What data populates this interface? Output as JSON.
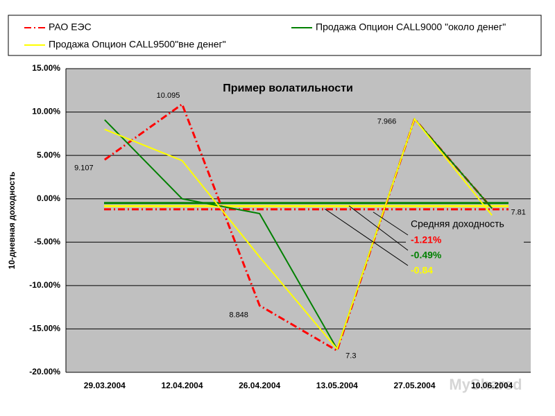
{
  "chart_data": {
    "type": "line",
    "title": "Пример волатильности",
    "y_label": "10-дневная доходность",
    "categories": [
      "29.03.2004",
      "12.04.2004",
      "26.04.2004",
      "13.05.2004",
      "27.05.2004",
      "10.06.2004"
    ],
    "ylim": [
      -20,
      15
    ],
    "yticks": [
      {
        "value": -20,
        "label": "-20.00%"
      },
      {
        "value": -15,
        "label": "-15.00%"
      },
      {
        "value": -10,
        "label": "-10.00%"
      },
      {
        "value": -5,
        "label": "-5.00%"
      },
      {
        "value": 0,
        "label": "0.00%"
      },
      {
        "value": 5,
        "label": "5.00%"
      },
      {
        "value": 10,
        "label": "10.00%"
      },
      {
        "value": 15,
        "label": "15.00%"
      }
    ],
    "grid": true,
    "series": [
      {
        "name": "РАО ЕЭС",
        "color": "#ff0000",
        "dash": "dashdot",
        "values": [
          4.5,
          10.9,
          -12.3,
          -17.5,
          9.2,
          -1.1
        ],
        "price_labels": [
          "9.107",
          "10.095",
          "8.848",
          "7.3",
          "7.966",
          "7.81"
        ],
        "mean": -1.21,
        "mean_label": "-1.21%"
      },
      {
        "name": "Продажа Опцион CALL9000 \"около денег\"",
        "color": "#008000",
        "values": [
          9.1,
          0.0,
          -1.7,
          -17.3,
          9.2,
          -1.1
        ],
        "mean": -0.49,
        "mean_label": "-0.49%"
      },
      {
        "name": "Продажа Опцион CALL9500\"вне денег\"",
        "color": "#ffff00",
        "values": [
          8.0,
          4.4,
          -6.7,
          -17.3,
          9.2,
          -1.9
        ],
        "mean": -0.84,
        "mean_label": "-0.84"
      }
    ],
    "mean_title": "Средняя доходность",
    "watermark": "MyShared"
  }
}
